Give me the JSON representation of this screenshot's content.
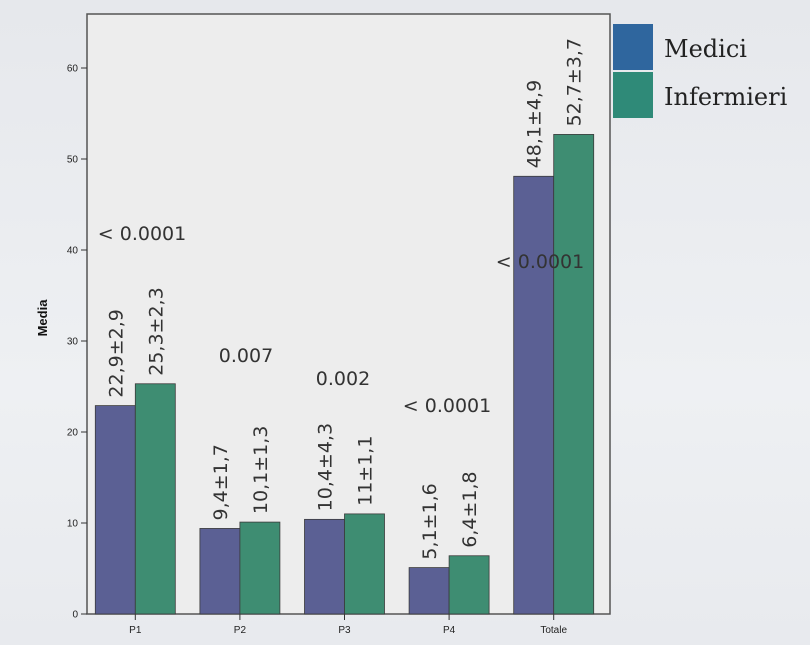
{
  "chart_data": {
    "type": "bar",
    "title": "",
    "xlabel": "",
    "ylabel": "Media",
    "ylim": [
      0,
      65
    ],
    "yticks": [
      0,
      10,
      20,
      30,
      40,
      50,
      60
    ],
    "categories": [
      "P1",
      "P2",
      "P3",
      "P4",
      "Totale"
    ],
    "series": [
      {
        "name": "Medici",
        "color": "#5b6094",
        "values": [
          22.9,
          9.4,
          10.4,
          5.1,
          48.1
        ],
        "labels": [
          "22,9±2,9",
          "9,4±1,7",
          "10,4±4,3",
          "5,1±1,6",
          "48,1±4,9"
        ]
      },
      {
        "name": "Infermieri",
        "color": "#3e8d72",
        "values": [
          25.3,
          10.1,
          11,
          6.4,
          52.7
        ],
        "labels": [
          "25,3±2,3",
          "10,1±1,3",
          "11±1,1",
          "6,4±1,8",
          "52,7±3,7"
        ]
      }
    ],
    "pvalues": [
      "< 0.0001",
      "0.007",
      "0.002",
      "< 0.0001",
      "< 0.0001"
    ],
    "legend": {
      "position": "top-right",
      "colors": [
        "#2f669e",
        "#2f8a78"
      ]
    },
    "grid": false,
    "background": "#eeeeee"
  }
}
